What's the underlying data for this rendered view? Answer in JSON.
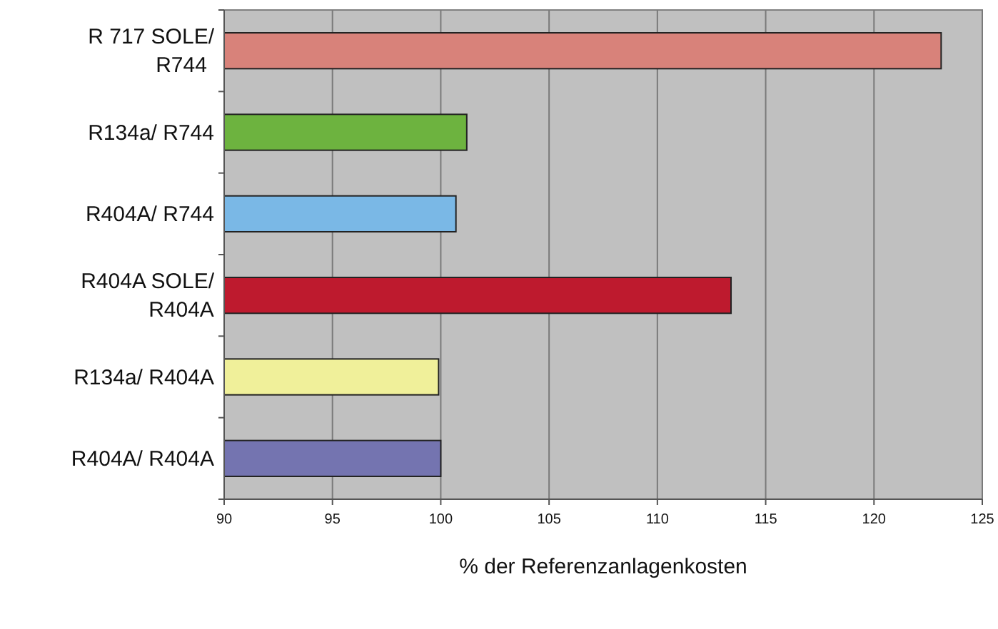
{
  "chart_data": {
    "type": "bar",
    "orientation": "horizontal",
    "xlabel": "% der Referenzanlagenkosten",
    "categories": [
      "R 717 SOLE/ R744",
      "R134a/ R744",
      "R404A/ R744",
      "R404A SOLE/ R404A",
      "R134a/ R404A",
      "R404A/ R404A"
    ],
    "values": [
      123.1,
      101.2,
      100.7,
      113.4,
      99.9,
      100.0
    ],
    "colors": [
      "#d8827a",
      "#6db33f",
      "#7ab8e6",
      "#be1a2e",
      "#f0f09a",
      "#7474b0"
    ],
    "xlim": [
      90,
      125
    ],
    "xticks": [
      90,
      95,
      100,
      105,
      110,
      115,
      120,
      125
    ],
    "grid": "x"
  }
}
